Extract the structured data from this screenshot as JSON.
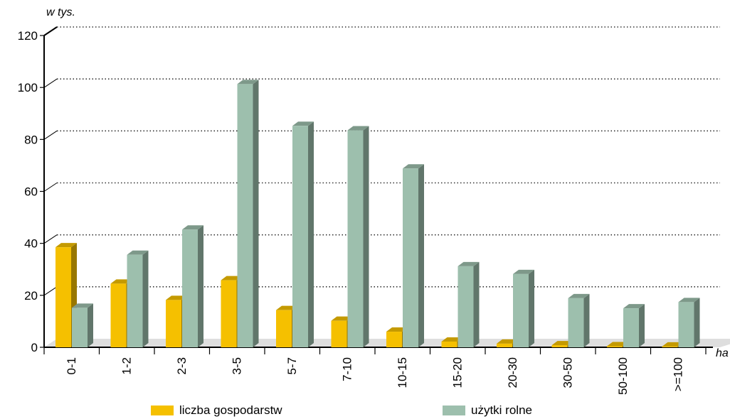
{
  "chart_data": {
    "type": "bar",
    "ylabel": "w tys.",
    "xlabel": "ha",
    "ylim": [
      0,
      120
    ],
    "yticks": [
      "0",
      "20",
      "40",
      "60",
      "80",
      "100",
      "120"
    ],
    "grid": true,
    "legend_position": "bottom",
    "categories": [
      "0-1",
      "1-2",
      "2-3",
      "3-5",
      "5-7",
      "7-10",
      "10-15",
      "15-20",
      "20-30",
      "30-50",
      "50-100",
      ">=100"
    ],
    "series": [
      {
        "name": "liczba gospodarstw",
        "color": "#f5c000",
        "values": [
          38.5,
          24.5,
          18.2,
          25.8,
          14.3,
          10.2,
          6.0,
          2.2,
          1.4,
          0.8,
          0.4,
          0.3
        ]
      },
      {
        "name": "użytki rolne",
        "color": "#9dbfad",
        "values": [
          15.2,
          35.6,
          45.3,
          101.3,
          85.2,
          83.5,
          68.8,
          31.2,
          28.2,
          18.9,
          15.0,
          17.4
        ]
      }
    ]
  }
}
